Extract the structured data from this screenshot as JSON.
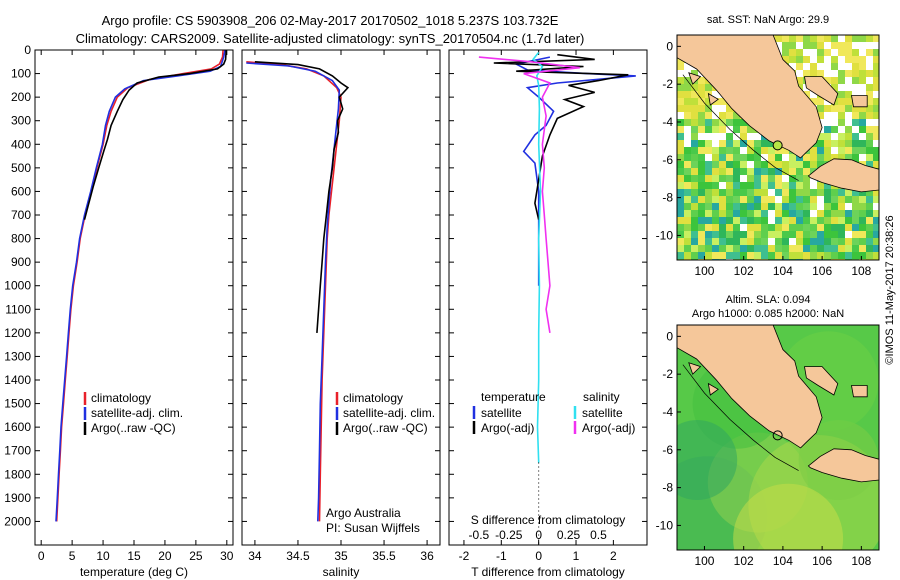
{
  "header": {
    "line1": "Argo profile: CS 5903908_206 02-May-2017 20170502_1018 5.237S 103.732E",
    "line2": "Climatology: CARS2009. Satellite-adjusted climatology: synTS_20170504.nc (1.7d later)"
  },
  "side_note": "©IMOS 11-May-2017 20:38:26",
  "colors": {
    "clim": "#e8202a",
    "sat": "#2030e0",
    "argo": "#000000",
    "sal_sat": "#30e0f0",
    "sal_argo": "#f030f0",
    "land": "#f5c79a",
    "sea_green": "#3cc43c"
  },
  "chart_data": [
    {
      "id": "temperature",
      "type": "line",
      "xlabel": "temperature (deg C)",
      "ylabel": "",
      "xlim": [
        -1,
        31
      ],
      "ylim": [
        0,
        2100
      ],
      "xticks": [
        0,
        5,
        10,
        15,
        20,
        25,
        30
      ],
      "yticks": [
        0,
        100,
        200,
        300,
        400,
        500,
        600,
        700,
        800,
        900,
        1000,
        1100,
        1200,
        1300,
        1400,
        1500,
        1600,
        1700,
        1800,
        1900,
        2000
      ],
      "legend": [
        "climatology",
        "satellite-adj. clim.",
        "Argo(..raw -QC)"
      ],
      "series": [
        {
          "name": "climatology",
          "color": "#e8202a",
          "points": [
            [
              29.4,
              0
            ],
            [
              29.3,
              30
            ],
            [
              28.8,
              60
            ],
            [
              27.5,
              80
            ],
            [
              23,
              100
            ],
            [
              17.5,
              125
            ],
            [
              14,
              160
            ],
            [
              12.3,
              200
            ],
            [
              11.3,
              260
            ],
            [
              10.6,
              320
            ],
            [
              10,
              400
            ],
            [
              9,
              500
            ],
            [
              8.1,
              600
            ],
            [
              7.1,
              700
            ],
            [
              6.3,
              800
            ],
            [
              5.8,
              900
            ],
            [
              5.2,
              1000
            ],
            [
              4.8,
              1100
            ],
            [
              4.5,
              1200
            ],
            [
              4.2,
              1300
            ],
            [
              3.9,
              1400
            ],
            [
              3.6,
              1500
            ],
            [
              3.3,
              1600
            ],
            [
              3.1,
              1700
            ],
            [
              2.9,
              1800
            ],
            [
              2.7,
              1900
            ],
            [
              2.5,
              2000
            ]
          ]
        },
        {
          "name": "satellite-adj. clim.",
          "color": "#2030e0",
          "points": [
            [
              29.7,
              0
            ],
            [
              29.5,
              30
            ],
            [
              29,
              70
            ],
            [
              27.3,
              90
            ],
            [
              22,
              110
            ],
            [
              16.5,
              130
            ],
            [
              13.5,
              165
            ],
            [
              12,
              200
            ],
            [
              11,
              260
            ],
            [
              10.4,
              320
            ],
            [
              9.9,
              400
            ],
            [
              8.9,
              500
            ],
            [
              8,
              600
            ],
            [
              7,
              700
            ],
            [
              6.2,
              800
            ],
            [
              5.7,
              900
            ],
            [
              5.1,
              1000
            ],
            [
              4.7,
              1100
            ],
            [
              4.4,
              1200
            ],
            [
              4.1,
              1300
            ],
            [
              3.8,
              1400
            ],
            [
              3.5,
              1500
            ],
            [
              3.2,
              1600
            ],
            [
              3,
              1700
            ],
            [
              2.8,
              1800
            ],
            [
              2.6,
              1900
            ],
            [
              2.4,
              2000
            ]
          ]
        },
        {
          "name": "Argo(..raw -QC)",
          "color": "#000000",
          "points": [
            [
              29.9,
              0
            ],
            [
              29.8,
              40
            ],
            [
              29.5,
              60
            ],
            [
              28.5,
              80
            ],
            [
              24,
              100
            ],
            [
              19,
              115
            ],
            [
              15.5,
              140
            ],
            [
              14.2,
              170
            ],
            [
              13.2,
              210
            ],
            [
              12.3,
              260
            ],
            [
              11.3,
              320
            ],
            [
              10.7,
              380
            ],
            [
              10.1,
              430
            ],
            [
              9.3,
              500
            ],
            [
              8.4,
              580
            ],
            [
              7.6,
              660
            ],
            [
              7,
              720
            ]
          ]
        }
      ]
    },
    {
      "id": "salinity",
      "type": "line",
      "xlabel": "salinity",
      "ylabel": "",
      "xlim": [
        33.85,
        36.15
      ],
      "ylim": [
        0,
        2100
      ],
      "xticks": [
        34,
        34.5,
        35,
        35.5,
        36
      ],
      "legend": [
        "climatology",
        "satellite-adj. clim.",
        "Argo(..raw -QC)"
      ],
      "series": [
        {
          "name": "climatology",
          "color": "#e8202a",
          "points": [
            [
              33.9,
              50
            ],
            [
              34.3,
              62
            ],
            [
              34.6,
              80
            ],
            [
              34.8,
              110
            ],
            [
              34.95,
              160
            ],
            [
              35,
              200
            ],
            [
              34.98,
              300
            ],
            [
              34.95,
              400
            ],
            [
              34.92,
              500
            ],
            [
              34.89,
              600
            ],
            [
              34.86,
              700
            ],
            [
              34.84,
              800
            ],
            [
              34.82,
              1000
            ],
            [
              34.8,
              1200
            ],
            [
              34.78,
              1400
            ],
            [
              34.77,
              1600
            ],
            [
              34.76,
              1800
            ],
            [
              34.75,
              2000
            ]
          ]
        },
        {
          "name": "satellite-adj. clim.",
          "color": "#2030e0",
          "points": [
            [
              33.9,
              55
            ],
            [
              34.4,
              68
            ],
            [
              34.7,
              90
            ],
            [
              34.9,
              130
            ],
            [
              34.98,
              170
            ],
            [
              34.97,
              250
            ],
            [
              34.94,
              350
            ],
            [
              34.91,
              450
            ],
            [
              34.88,
              550
            ],
            [
              34.86,
              650
            ],
            [
              34.84,
              750
            ],
            [
              34.82,
              900
            ],
            [
              34.8,
              1100
            ],
            [
              34.78,
              1300
            ],
            [
              34.76,
              1500
            ],
            [
              34.75,
              1700
            ],
            [
              34.74,
              1900
            ],
            [
              34.73,
              2000
            ]
          ]
        },
        {
          "name": "Argo(..raw -QC)",
          "color": "#000000",
          "points": [
            [
              34,
              50
            ],
            [
              34.5,
              62
            ],
            [
              34.75,
              80
            ],
            [
              34.9,
              110
            ],
            [
              35,
              140
            ],
            [
              35.08,
              160
            ],
            [
              34.98,
              200
            ],
            [
              35.02,
              250
            ],
            [
              34.96,
              300
            ],
            [
              34.97,
              350
            ],
            [
              34.92,
              420
            ],
            [
              34.9,
              500
            ],
            [
              34.86,
              600
            ],
            [
              34.83,
              700
            ],
            [
              34.8,
              800
            ],
            [
              34.78,
              900
            ],
            [
              34.76,
              1000
            ],
            [
              34.74,
              1100
            ],
            [
              34.72,
              1200
            ]
          ]
        }
      ]
    },
    {
      "id": "difference",
      "type": "line",
      "xlabel": "T difference from climatology",
      "xlabel_top": "S difference from climatology",
      "xlim": [
        -2.4,
        2.9
      ],
      "ylim": [
        0,
        2100
      ],
      "xticks": [
        -2,
        -1,
        0,
        1,
        2
      ],
      "sticks": [
        [
          "-0.5",
          -1.6
        ],
        [
          "-0.25",
          -0.8
        ],
        [
          "0",
          0
        ],
        [
          "0.25",
          0.8
        ],
        [
          "0.5",
          1.6
        ]
      ],
      "legend_titles": [
        "temperature",
        "salinity"
      ],
      "legend_left": [
        "satellite",
        "Argo(-adj)"
      ],
      "legend_right": [
        "satellite",
        "Argo(-adj)"
      ],
      "series": [
        {
          "name": "T satellite",
          "color": "#2030e0",
          "points": [
            [
              0.3,
              30
            ],
            [
              -0.6,
              60
            ],
            [
              -0.3,
              85
            ],
            [
              1.3,
              100
            ],
            [
              2.6,
              110
            ],
            [
              0.5,
              140
            ],
            [
              -0.3,
              160
            ],
            [
              0,
              200
            ],
            [
              0.4,
              260
            ],
            [
              0.2,
              320
            ],
            [
              -0.1,
              360
            ],
            [
              -0.4,
              430
            ],
            [
              -0.1,
              480
            ],
            [
              0,
              600
            ],
            [
              0,
              800
            ],
            [
              0,
              1000
            ]
          ]
        },
        {
          "name": "T Argo(-adj)",
          "color": "#000000",
          "points": [
            [
              0.5,
              20
            ],
            [
              1.5,
              40
            ],
            [
              -1.2,
              55
            ],
            [
              1.2,
              70
            ],
            [
              -0.6,
              90
            ],
            [
              2.4,
              105
            ],
            [
              1.6,
              130
            ],
            [
              0.8,
              150
            ],
            [
              1.5,
              180
            ],
            [
              0.7,
              210
            ],
            [
              1.2,
              240
            ],
            [
              0.5,
              290
            ],
            [
              0.3,
              360
            ],
            [
              0.1,
              450
            ],
            [
              0,
              550
            ],
            [
              -0.1,
              650
            ],
            [
              0,
              720
            ]
          ]
        },
        {
          "name": "S satellite",
          "color": "#30e0f0",
          "points": [
            [
              0,
              10
            ],
            [
              -0.15,
              40
            ],
            [
              0.1,
              70
            ],
            [
              -0.05,
              110
            ],
            [
              0,
              150
            ],
            [
              0.02,
              250
            ],
            [
              0,
              400
            ],
            [
              0.05,
              600
            ],
            [
              0,
              800
            ],
            [
              0.02,
              1000
            ],
            [
              0,
              1200
            ],
            [
              0,
              1400
            ],
            [
              -0.03,
              1600
            ],
            [
              0,
              1750
            ]
          ]
        },
        {
          "name": "S Argo(-adj)",
          "color": "#f030f0",
          "points": [
            [
              -1.6,
              30
            ],
            [
              -0.2,
              50
            ],
            [
              1.1,
              75
            ],
            [
              -0.4,
              100
            ],
            [
              0.3,
              140
            ],
            [
              0.1,
              200
            ],
            [
              0.2,
              280
            ],
            [
              0.1,
              400
            ],
            [
              0.15,
              500
            ],
            [
              0.1,
              600
            ],
            [
              0.15,
              700
            ],
            [
              0.2,
              800
            ],
            [
              0.25,
              900
            ],
            [
              0.3,
              1000
            ],
            [
              0.2,
              1100
            ],
            [
              0.3,
              1200
            ]
          ]
        }
      ]
    },
    {
      "id": "sst_map",
      "type": "heatmap",
      "title": "sat. SST: NaN Argo: 29.9",
      "xticks": [
        100,
        102,
        104,
        106,
        108
      ],
      "yticks": [
        0,
        -2,
        -4,
        -6,
        -8,
        -10
      ],
      "xlim": [
        98.6,
        108.9
      ],
      "ylim": [
        -11.3,
        0.6
      ],
      "argo_position": [
        103.732,
        -5.237
      ]
    },
    {
      "id": "sla_map",
      "type": "heatmap",
      "title_line1": "Altim. SLA: 0.094",
      "title_line2": "Argo h1000: 0.085 h2000: NaN",
      "xticks": [
        100,
        102,
        104,
        106,
        108
      ],
      "yticks": [
        0,
        -2,
        -4,
        -6,
        -8,
        -10
      ],
      "xlim": [
        98.6,
        108.9
      ],
      "ylim": [
        -11.3,
        0.6
      ],
      "argo_position": [
        103.732,
        -5.237
      ]
    }
  ],
  "texts": {
    "argo_australia": "Argo Australia",
    "pi": "PI: Susan Wijffels"
  }
}
